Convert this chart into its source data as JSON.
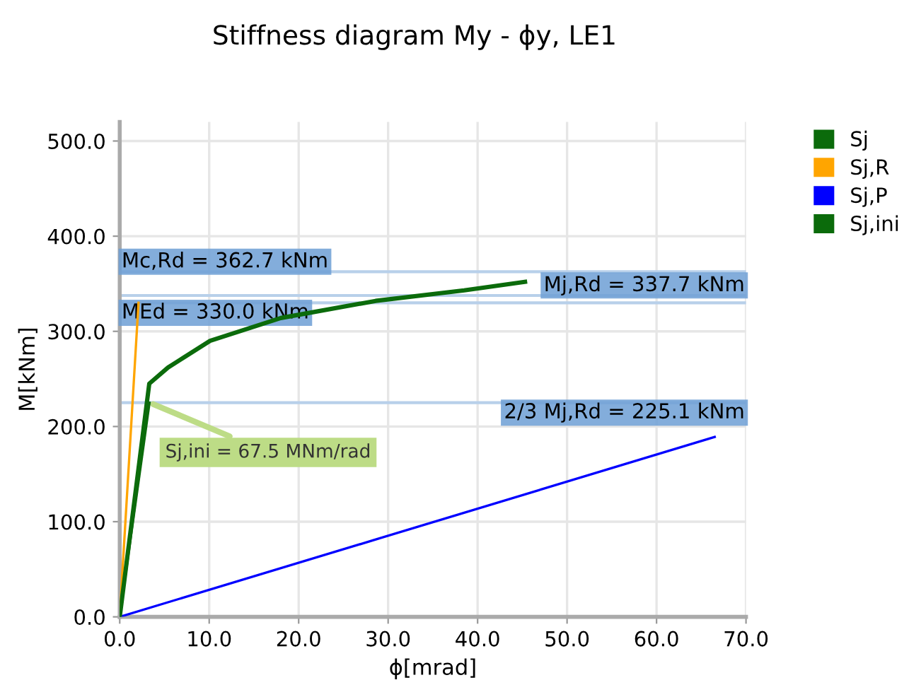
{
  "chart_data": {
    "type": "line",
    "title": "Stiffness diagram My - ϕy, LE1",
    "xlabel": "ϕ[mrad]",
    "ylabel": "M[kNm]",
    "xlim": [
      0,
      70
    ],
    "ylim": [
      0,
      520
    ],
    "xticks": [
      {
        "value": 0,
        "label": "0.0"
      },
      {
        "value": 10,
        "label": "10.0"
      },
      {
        "value": 20,
        "label": "20.0"
      },
      {
        "value": 30,
        "label": "30.0"
      },
      {
        "value": 40,
        "label": "40.0"
      },
      {
        "value": 50,
        "label": "50.0"
      },
      {
        "value": 60,
        "label": "60.0"
      },
      {
        "value": 70,
        "label": "70.0"
      }
    ],
    "yticks": [
      {
        "value": 0,
        "label": "0.0"
      },
      {
        "value": 100,
        "label": "100.0"
      },
      {
        "value": 200,
        "label": "200.0"
      },
      {
        "value": 300,
        "label": "300.0"
      },
      {
        "value": 400,
        "label": "400.0"
      },
      {
        "value": 500,
        "label": "500.0"
      }
    ],
    "grid": true,
    "legend": "top right",
    "marker": "none",
    "series": [
      {
        "name": "Sj",
        "color": "#0b6b0b",
        "x": [
          0,
          3.3,
          5.4,
          10.1,
          18.0,
          28.6,
          38.5,
          45.3
        ],
        "values": [
          0,
          245,
          262,
          290,
          314,
          332,
          343,
          352
        ]
      },
      {
        "name": "Sj,R",
        "color": "#ffa500",
        "x": [
          0,
          2.1
        ],
        "values": [
          0,
          330
        ]
      },
      {
        "name": "Sj,P",
        "color": "#0000ff",
        "x": [
          0,
          66.5
        ],
        "values": [
          0,
          189
        ]
      },
      {
        "name": "Sj,ini",
        "color": "#0b6b0b",
        "x": [
          0,
          3.33
        ],
        "values": [
          0,
          225
        ]
      }
    ],
    "ref_lines": [
      {
        "axis": "y",
        "value": 362.7,
        "label": "Mc,Rd = 362.7 kNm",
        "color": "#b8d0ea"
      },
      {
        "axis": "y",
        "value": 337.7,
        "label": "Mj,Rd = 337.7 kNm",
        "color": "#b8d0ea"
      },
      {
        "axis": "y",
        "value": 330.0,
        "label": "MEd = 330.0 kNm",
        "color": "#b8d0ea"
      },
      {
        "axis": "y",
        "value": 225.1,
        "label": "2/3 Mj,Rd = 225.1 kNm",
        "color": "#b8d0ea"
      }
    ],
    "annotations": [
      {
        "text": "Sj,ini = 67.5 MNm/rad",
        "x": 3.33,
        "y": 225.1
      }
    ]
  }
}
